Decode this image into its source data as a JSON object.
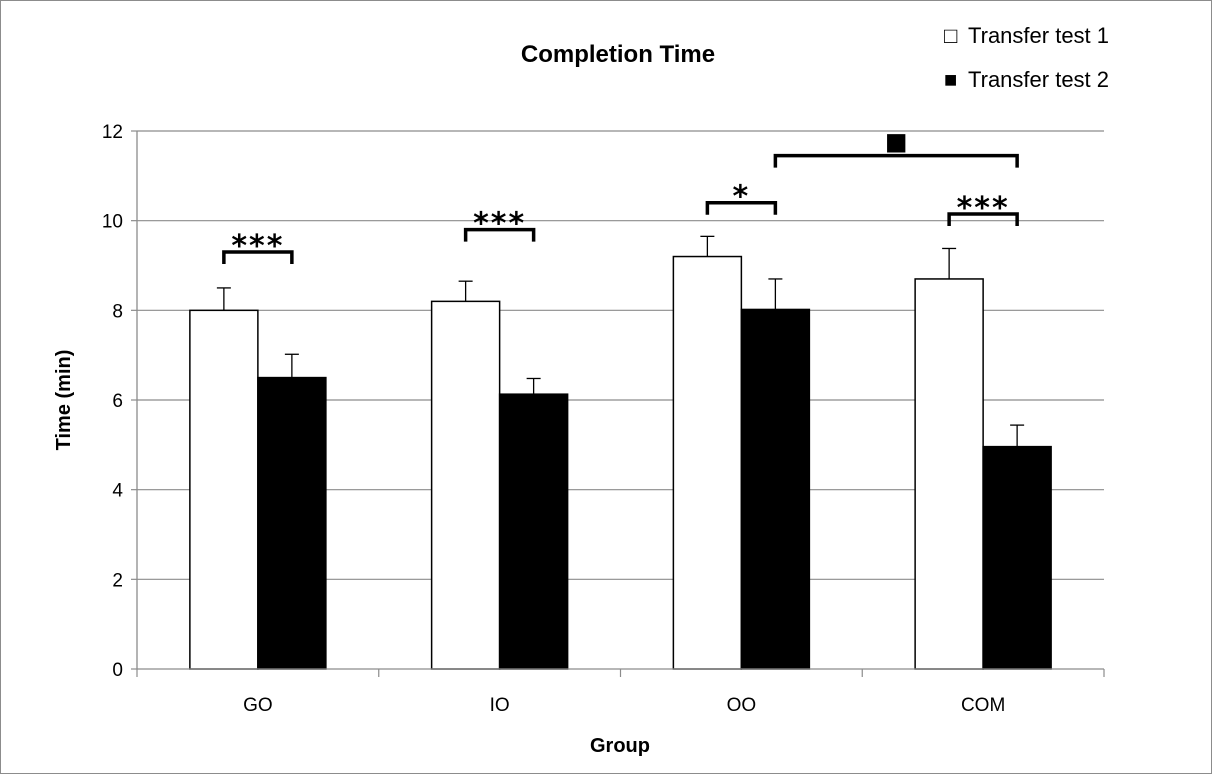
{
  "chart_data": {
    "type": "bar",
    "title": "Completion Time",
    "xlabel": "Group",
    "ylabel": "Time (min)",
    "categories": [
      "GO",
      "IO",
      "OO",
      "COM"
    ],
    "ylim": [
      0,
      12
    ],
    "yticks": [
      0,
      2,
      4,
      6,
      8,
      10,
      12
    ],
    "grid": true,
    "legend_position": "top-right",
    "series": [
      {
        "name": "Transfer test 1",
        "marker": "□",
        "color": "#ffffff",
        "values": [
          8.0,
          8.2,
          9.2,
          8.7
        ],
        "errors": [
          0.5,
          0.45,
          0.45,
          0.68
        ]
      },
      {
        "name": "Transfer test 2",
        "marker": "■",
        "color": "#000000",
        "values": [
          6.5,
          6.13,
          8.02,
          4.96
        ],
        "errors": [
          0.52,
          0.35,
          0.68,
          0.48
        ]
      }
    ],
    "annotations": [
      {
        "label": "***",
        "between": [
          "GO:Transfer test 1",
          "GO:Transfer test 2"
        ],
        "level": 9.3
      },
      {
        "label": "***",
        "between": [
          "IO:Transfer test 1",
          "IO:Transfer test 2"
        ],
        "level": 9.8
      },
      {
        "label": "*",
        "between": [
          "OO:Transfer test 1",
          "OO:Transfer test 2"
        ],
        "level": 10.4
      },
      {
        "label": "***",
        "between": [
          "COM:Transfer test 1",
          "COM:Transfer test 2"
        ],
        "level": 10.15
      },
      {
        "label": "■",
        "between": [
          "OO:Transfer test 2",
          "COM:Transfer test 2"
        ],
        "level": 11.45
      }
    ]
  }
}
